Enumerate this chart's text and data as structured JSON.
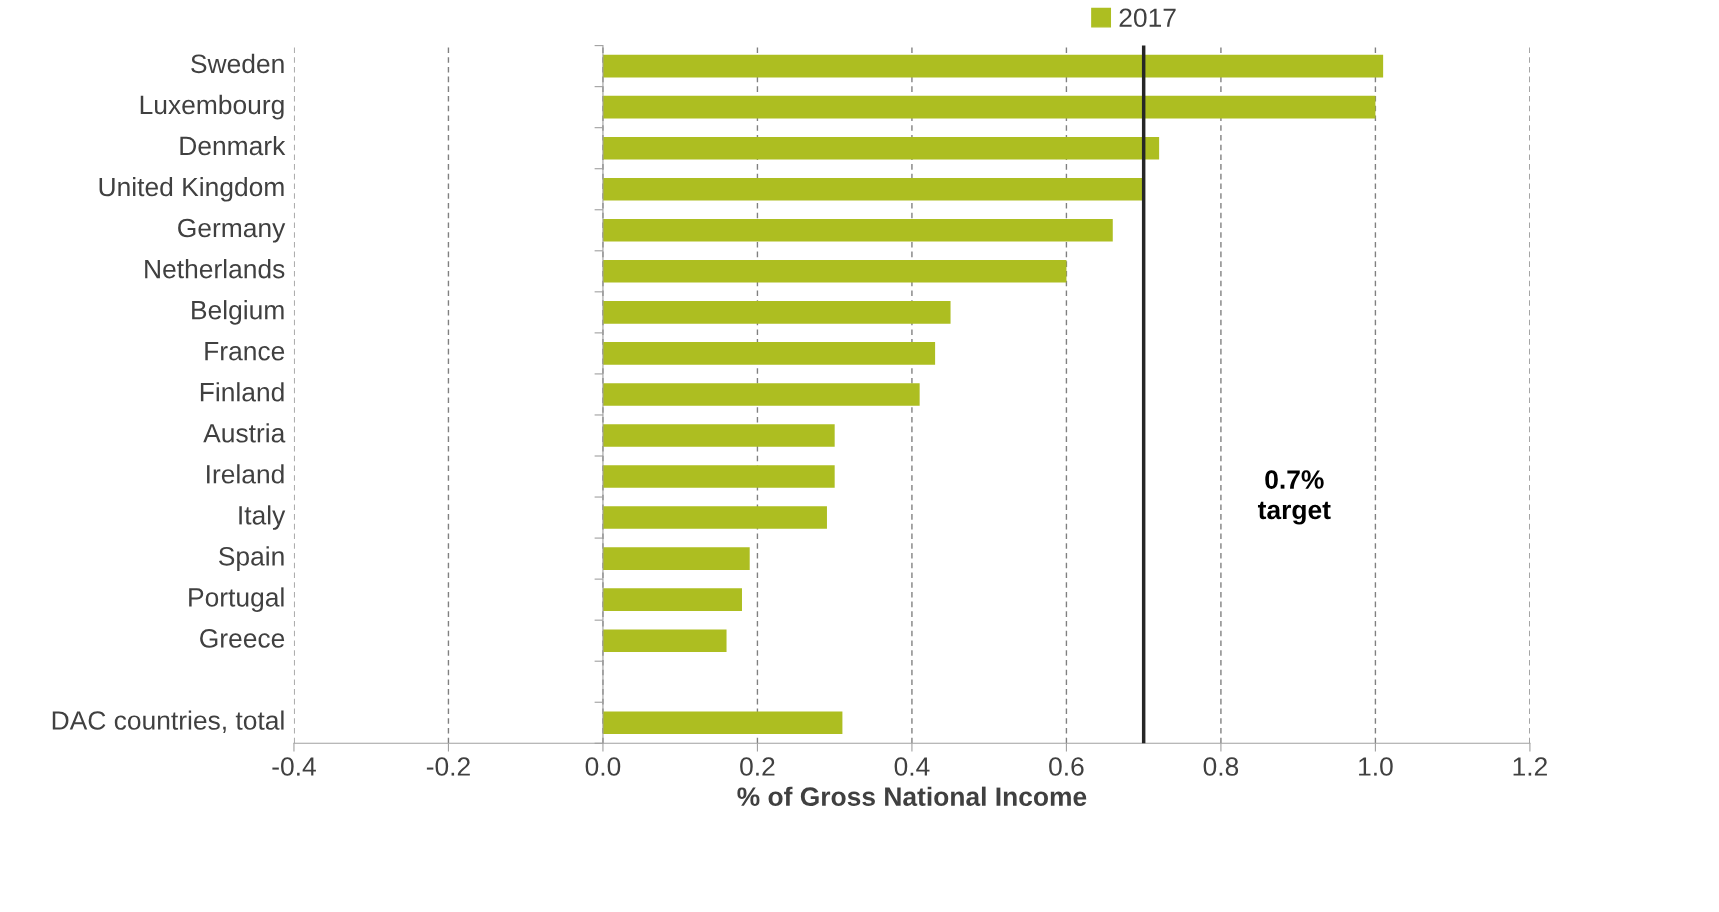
{
  "chart_data": {
    "type": "bar",
    "orientation": "horizontal",
    "categories": [
      "Sweden",
      "Luxembourg",
      "Denmark",
      "United Kingdom",
      "Germany",
      "Netherlands",
      "Belgium",
      "France",
      "Finland",
      "Austria",
      "Ireland",
      "Italy",
      "Spain",
      "Portugal",
      "Greece",
      null,
      "DAC countries, total"
    ],
    "series": [
      {
        "name": "2017",
        "color": "#adbe21",
        "values": [
          1.01,
          1.0,
          0.72,
          0.7,
          0.66,
          0.6,
          0.45,
          0.43,
          0.41,
          0.3,
          0.3,
          0.29,
          0.19,
          0.18,
          0.16,
          null,
          0.31
        ]
      }
    ],
    "xlabel": "% of Gross National Income",
    "xlim": [
      -0.4,
      1.2
    ],
    "xticks": [
      {
        "value": -0.4,
        "label": "-0.4"
      },
      {
        "value": -0.2,
        "label": "-0.2"
      },
      {
        "value": 0.0,
        "label": "0.0"
      },
      {
        "value": 0.2,
        "label": "0.2"
      },
      {
        "value": 0.4,
        "label": "0.4"
      },
      {
        "value": 0.6,
        "label": "0.6"
      },
      {
        "value": 0.8,
        "label": "0.8"
      },
      {
        "value": 1.0,
        "label": "1.0"
      },
      {
        "value": 1.2,
        "label": "1.2"
      }
    ],
    "grid": "x",
    "legend": "top",
    "ref_lines": [
      {
        "axis": "x",
        "value": 0.7,
        "label": "0.7%\ntarget",
        "color": "#262626",
        "line_style": "solid"
      }
    ]
  }
}
